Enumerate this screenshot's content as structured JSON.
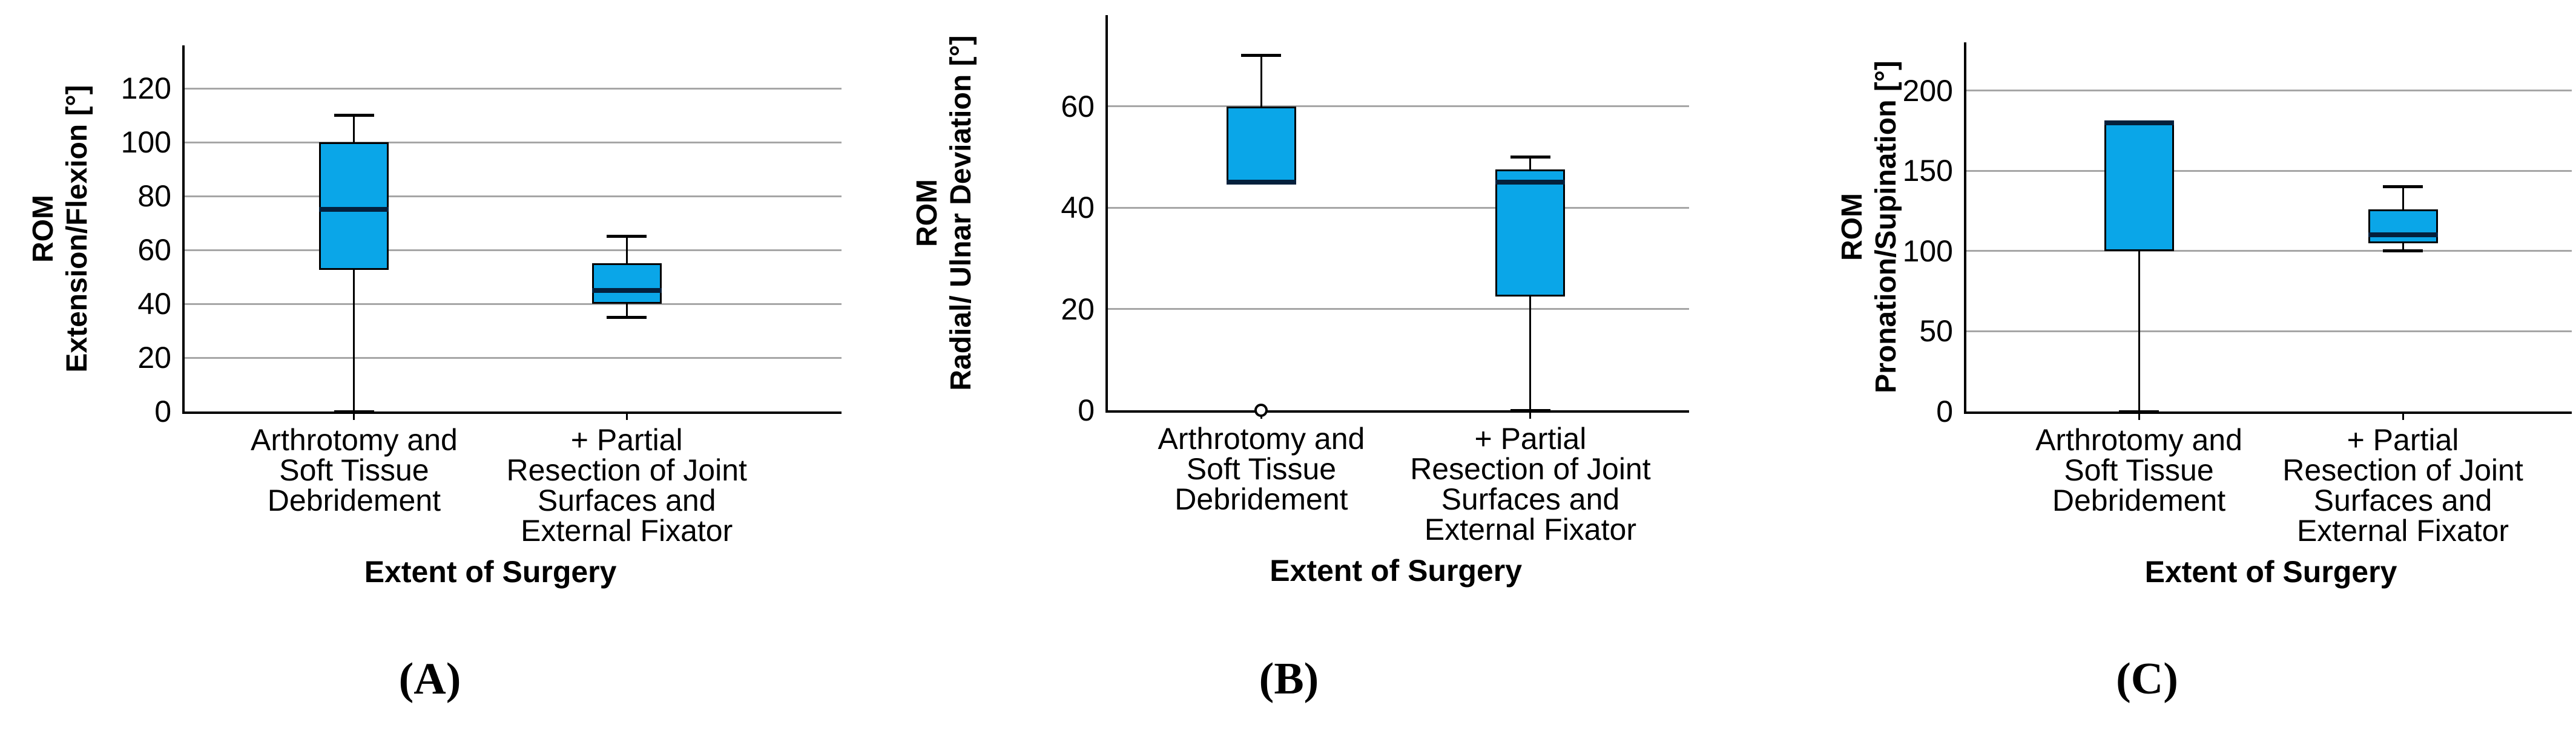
{
  "figure": {
    "background": "#FFFFFF",
    "description": "Three box plots of range of motion by extent of surgery"
  },
  "colors": {
    "box_fill": "#0AA6E8",
    "median_line": "#04203C",
    "axis_line": "#000000",
    "gridline": "#A6A6A6",
    "text": "#000000",
    "outlier_fill": "#FFFFFF"
  },
  "chart_data": [
    {
      "type": "box",
      "panel_letter": "(A)",
      "ylabel_line1": "ROM",
      "ylabel_line2": "Extension/Flexion [°]",
      "xlabel": "Extent of Surgery",
      "yticks": [
        0,
        20,
        40,
        60,
        80,
        100,
        120
      ],
      "ylim": [
        0,
        136
      ],
      "grid": true,
      "legend": "none",
      "categories": [
        [
          "Arthrotomy and",
          "Soft Tissue",
          "Debridement"
        ],
        [
          "+ Partial",
          "Resection of Joint",
          "Surfaces and",
          "External Fixator"
        ]
      ],
      "boxes": [
        {
          "category": "Arthrotomy and Soft Tissue Debridement",
          "whisker_low": 0,
          "q1": 52.5,
          "median": 75,
          "q3": 100,
          "whisker_high": 110,
          "outliers": []
        },
        {
          "category": "+ Partial Resection of Joint Surfaces and External Fixator",
          "whisker_low": 35,
          "q1": 40,
          "median": 45,
          "q3": 55,
          "whisker_high": 65,
          "outliers": []
        }
      ]
    },
    {
      "type": "box",
      "panel_letter": "(B)",
      "ylabel_line1": "ROM",
      "ylabel_line2": "Radial/ Ulnar Deviation [°]",
      "xlabel": "Extent of Surgery",
      "yticks": [
        0,
        20,
        40,
        60
      ],
      "ylim": [
        0,
        78
      ],
      "grid": true,
      "legend": "none",
      "categories": [
        [
          "Arthrotomy and",
          "Soft Tissue",
          "Debridement"
        ],
        [
          "+ Partial",
          "Resection of Joint",
          "Surfaces and",
          "External Fixator"
        ]
      ],
      "boxes": [
        {
          "category": "Arthrotomy and Soft Tissue Debridement",
          "whisker_low": null,
          "q1": 45,
          "median": 45,
          "q3": 60,
          "whisker_high": 70,
          "outliers": [
            0
          ]
        },
        {
          "category": "+ Partial Resection of Joint Surfaces and External Fixator",
          "whisker_low": 0,
          "q1": 22.5,
          "median": 45,
          "q3": 47.5,
          "whisker_high": 50,
          "outliers": []
        }
      ]
    },
    {
      "type": "box",
      "panel_letter": "(C)",
      "ylabel_line1": "ROM",
      "ylabel_line2": "Pronation/Supination [°]",
      "xlabel": "Extent of Surgery",
      "yticks": [
        0,
        50,
        100,
        150,
        200
      ],
      "ylim": [
        0,
        230
      ],
      "grid": true,
      "legend": "none",
      "categories": [
        [
          "Arthrotomy and",
          "Soft Tissue",
          "Debridement"
        ],
        [
          "+ Partial",
          "Resection of Joint",
          "Surfaces and",
          "External Fixator"
        ]
      ],
      "boxes": [
        {
          "category": "Arthrotomy and Soft Tissue Debridement",
          "whisker_low": 0,
          "q1": 100,
          "median": 180,
          "q3": 180,
          "whisker_high": null,
          "outliers": []
        },
        {
          "category": "+ Partial Resection of Joint Surfaces and External Fixator",
          "whisker_low": 100,
          "q1": 105,
          "median": 110,
          "q3": 126,
          "whisker_high": 140,
          "outliers": []
        }
      ]
    }
  ]
}
